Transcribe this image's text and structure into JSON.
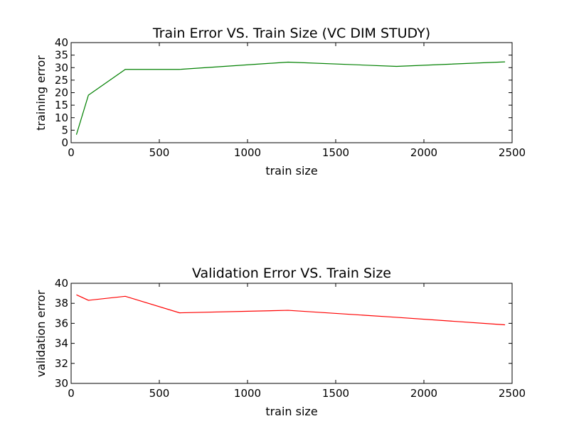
{
  "chart_data": [
    {
      "type": "line",
      "title": "Train Error VS. Train Size (VC DIM STUDY)",
      "xlabel": "train size",
      "ylabel": "training error",
      "xlim": [
        0,
        2500
      ],
      "ylim": [
        0,
        40
      ],
      "xticks": [
        0,
        500,
        1000,
        1500,
        2000,
        2500
      ],
      "yticks": [
        0,
        5,
        10,
        15,
        20,
        25,
        30,
        35,
        40
      ],
      "grid": false,
      "series": [
        {
          "color": "#008000",
          "x": [
            30,
            98,
            307,
            615,
            1230,
            1845,
            2460
          ],
          "y": [
            3.2,
            19.0,
            29.3,
            29.3,
            32.2,
            30.5,
            32.3
          ]
        }
      ]
    },
    {
      "type": "line",
      "title": "Validation Error VS. Train Size",
      "xlabel": "train size",
      "ylabel": "validation error",
      "xlim": [
        0,
        2500
      ],
      "ylim": [
        30,
        40
      ],
      "xticks": [
        0,
        500,
        1000,
        1500,
        2000,
        2500
      ],
      "yticks": [
        30,
        32,
        34,
        36,
        38,
        40
      ],
      "grid": false,
      "series": [
        {
          "color": "#ff0000",
          "x": [
            30,
            98,
            307,
            615,
            1230,
            1845,
            2460
          ],
          "y": [
            38.85,
            38.3,
            38.7,
            37.05,
            37.3,
            36.6,
            35.85
          ]
        }
      ]
    }
  ]
}
